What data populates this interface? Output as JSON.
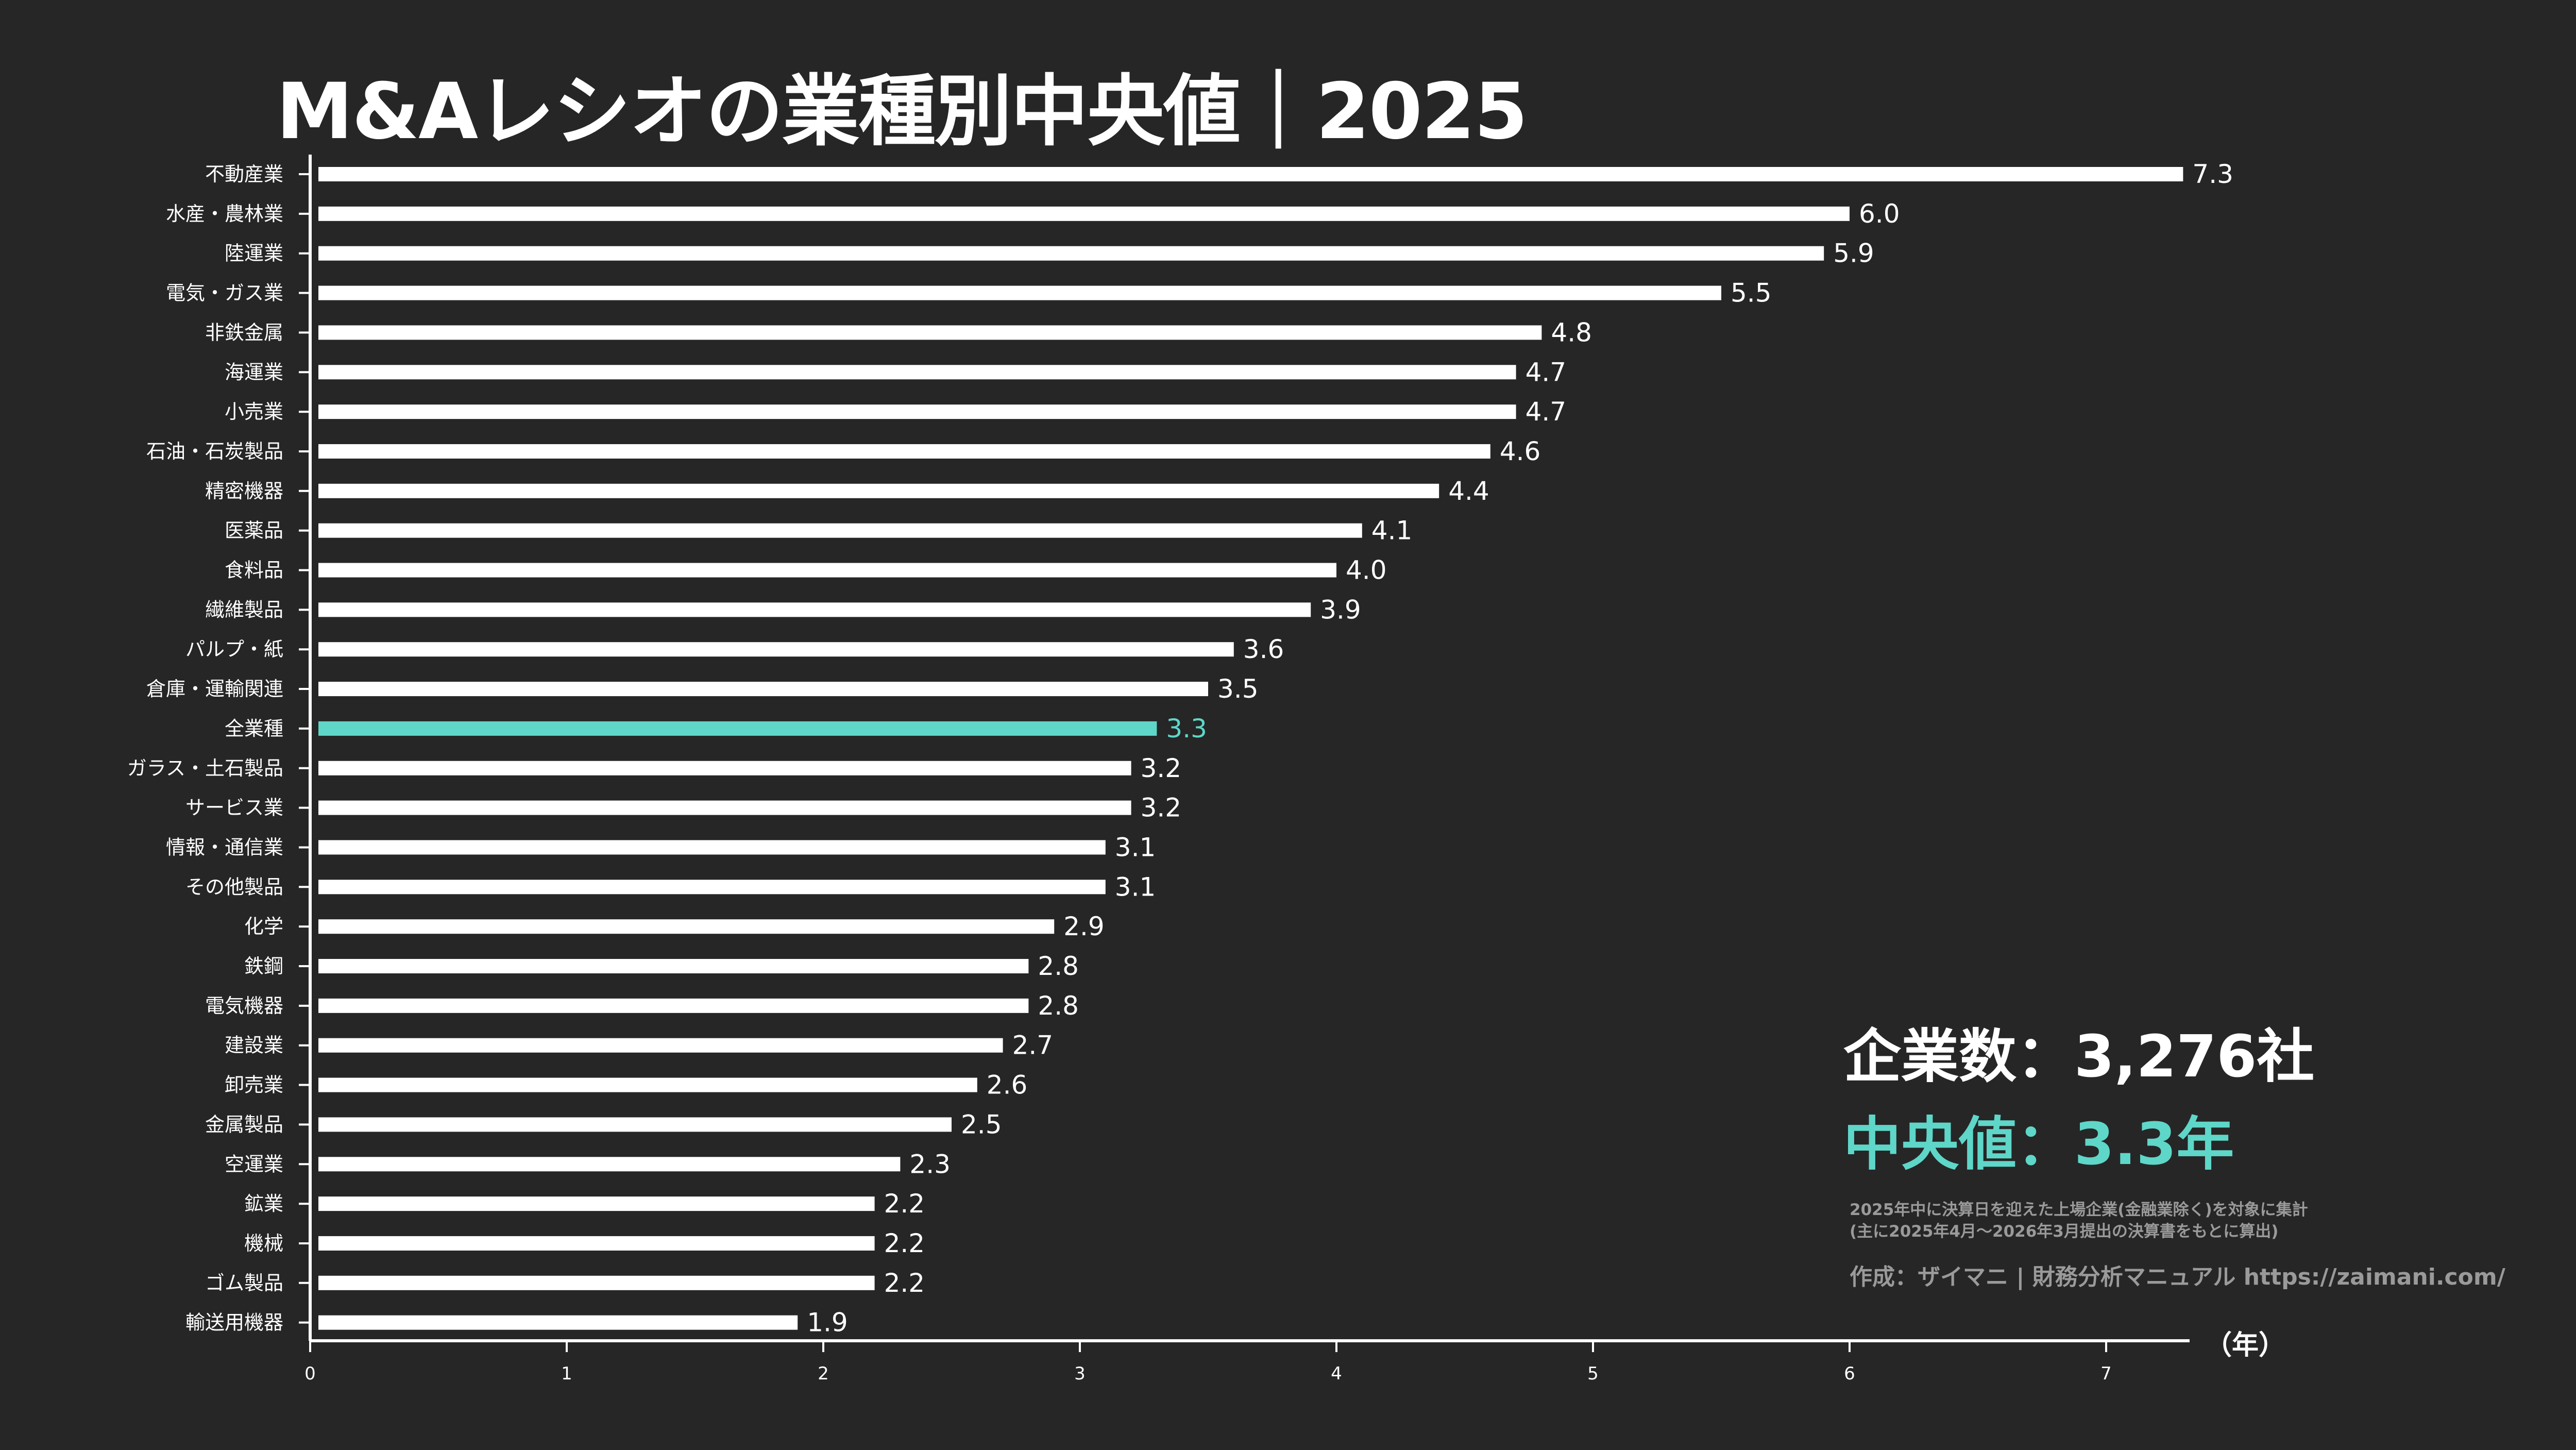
{
  "chart_data": {
    "type": "bar",
    "orientation": "horizontal",
    "title": "M&Aレシオの業種別中央値｜2025",
    "xlabel": "（年）",
    "ylabel": "",
    "xlim": [
      0,
      7.3
    ],
    "xticks": [
      "0",
      "1",
      "2",
      "3",
      "4",
      "5",
      "6",
      "7"
    ],
    "grid": false,
    "categories": [
      "不動産業",
      "水産・農林業",
      "陸運業",
      "電気・ガス業",
      "非鉄金属",
      "海運業",
      "小売業",
      "石油・石炭製品",
      "精密機器",
      "医薬品",
      "食料品",
      "繊維製品",
      "パルプ・紙",
      "倉庫・運輸関連",
      "全業種",
      "ガラス・土石製品",
      "サービス業",
      "情報・通信業",
      "その他製品",
      "化学",
      "鉄鋼",
      "電気機器",
      "建設業",
      "卸売業",
      "金属製品",
      "空運業",
      "鉱業",
      "機械",
      "ゴム製品",
      "輸送用機器"
    ],
    "values": [
      7.3,
      6.0,
      5.9,
      5.5,
      4.8,
      4.7,
      4.7,
      4.6,
      4.4,
      4.1,
      4.0,
      3.9,
      3.6,
      3.5,
      3.3,
      3.2,
      3.2,
      3.1,
      3.1,
      2.9,
      2.8,
      2.8,
      2.7,
      2.6,
      2.5,
      2.3,
      2.2,
      2.2,
      2.2,
      1.9
    ],
    "value_labels": [
      "7.3",
      "6.0",
      "5.9",
      "5.5",
      "4.8",
      "4.7",
      "4.7",
      "4.6",
      "4.4",
      "4.1",
      "4.0",
      "3.9",
      "3.6",
      "3.5",
      "3.3",
      "3.2",
      "3.2",
      "3.1",
      "3.1",
      "2.9",
      "2.8",
      "2.8",
      "2.7",
      "2.6",
      "2.5",
      "2.3",
      "2.2",
      "2.2",
      "2.2",
      "1.9"
    ],
    "highlight_category": "全業種",
    "colors": {
      "bar": "#ffffff",
      "highlight": "#5ed6c8",
      "background": "#262626"
    }
  },
  "annotations": {
    "company_count": "企業数：3,276社",
    "median": "中央値：3.3年",
    "note_line1": "2025年中に決算日を迎えた上場企業(金融業除く)を対象に集計",
    "note_line2": "(主に2025年4月～2026年3月提出の決算書をもとに算出)",
    "credit": "作成：ザイマニ | 財務分析マニュアル https://zaimani.com/"
  }
}
